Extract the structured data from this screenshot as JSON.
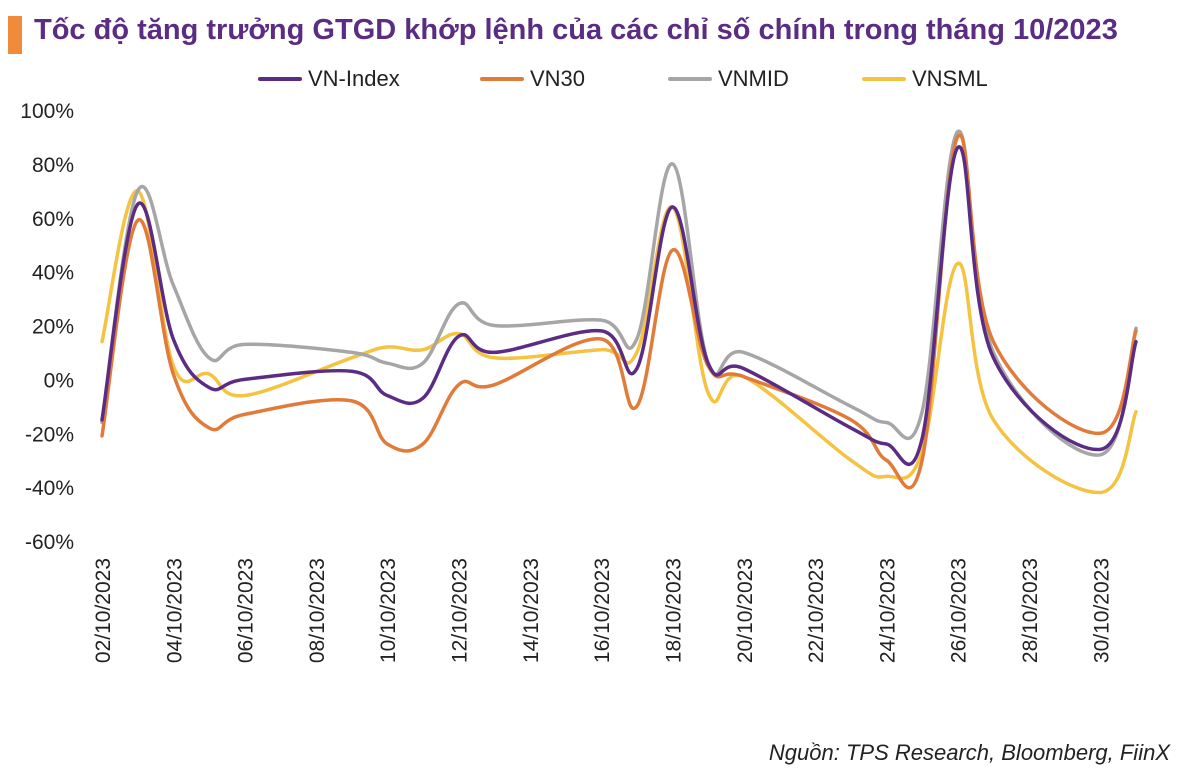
{
  "title": "Tốc độ tăng trưởng GTGD khớp lệnh của các chỉ số chính trong tháng 10/2023",
  "source": "Nguồn: TPS Research, Bloomberg, FiinX",
  "colors": {
    "accent": "#EF8B3A",
    "title": "#5B2C83"
  },
  "chart_data": {
    "type": "line",
    "ylim": [
      -60,
      100
    ],
    "y_ticks": [
      "-60%",
      "-40%",
      "-20%",
      "0%",
      "20%",
      "40%",
      "60%",
      "80%",
      "100%"
    ],
    "y_tick_values": [
      -60,
      -40,
      -20,
      0,
      20,
      40,
      60,
      80,
      100
    ],
    "x_tick_labels": [
      "02/10/2023",
      "04/10/2023",
      "06/10/2023",
      "08/10/2023",
      "10/10/2023",
      "12/10/2023",
      "14/10/2023",
      "16/10/2023",
      "18/10/2023",
      "20/10/2023",
      "22/10/2023",
      "24/10/2023",
      "26/10/2023",
      "28/10/2023",
      "30/10/2023"
    ],
    "x": [
      "02/10/2023",
      "03/10/2023",
      "04/10/2023",
      "05/10/2023",
      "06/10/2023",
      "09/10/2023",
      "10/10/2023",
      "11/10/2023",
      "12/10/2023",
      "13/10/2023",
      "16/10/2023",
      "17/10/2023",
      "18/10/2023",
      "19/10/2023",
      "20/10/2023",
      "23/10/2023",
      "24/10/2023",
      "25/10/2023",
      "26/10/2023",
      "27/10/2023",
      "30/10/2023",
      "31/10/2023"
    ],
    "x_day": [
      2,
      3,
      4,
      5,
      6,
      9,
      10,
      11,
      12,
      13,
      16,
      17,
      18,
      19,
      20,
      23,
      24,
      25,
      26,
      27,
      30,
      31
    ],
    "series": [
      {
        "name": "VN-Index",
        "color": "#5B2C83",
        "values": [
          -15,
          65,
          15,
          -3,
          0,
          3,
          -6,
          -7,
          16,
          10,
          18,
          4,
          64,
          6,
          4,
          -18,
          -24,
          -22,
          86,
          8,
          -26,
          14
        ]
      },
      {
        "name": "VN30",
        "color": "#E07B39",
        "values": [
          -21,
          59,
          2,
          -18,
          -13,
          -8,
          -24,
          -24,
          -2,
          -2,
          15,
          -10,
          48,
          5,
          1,
          -15,
          -30,
          -30,
          90,
          14,
          -20,
          18
        ]
      },
      {
        "name": "VNMID",
        "color": "#A6A6A6",
        "values": [
          -16,
          70,
          35,
          8,
          13,
          10,
          6,
          6,
          28,
          20,
          22,
          15,
          80,
          6,
          10,
          -10,
          -16,
          -12,
          92,
          10,
          -28,
          19
        ]
      },
      {
        "name": "VNSML",
        "color": "#F5C342",
        "values": [
          14,
          70,
          5,
          2,
          -6,
          8,
          12,
          11,
          17,
          8,
          11,
          10,
          64,
          -5,
          1,
          -30,
          -36,
          -27,
          43,
          -15,
          -42,
          -12
        ]
      }
    ]
  }
}
